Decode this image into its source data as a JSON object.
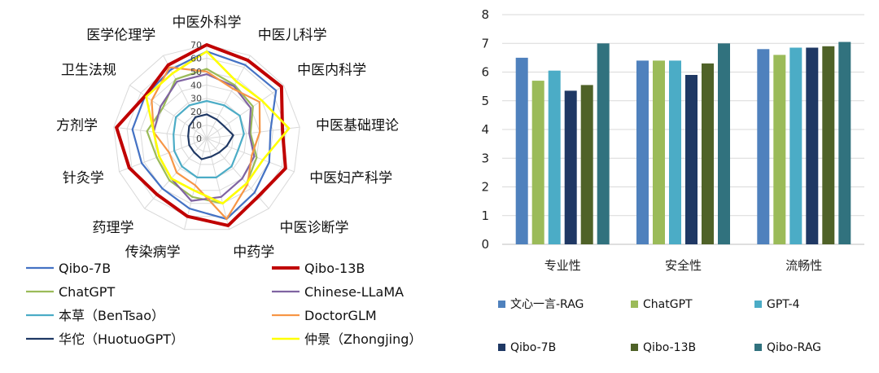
{
  "chart_data": [
    {
      "type": "radar",
      "title": "",
      "axes": [
        "中医外科学",
        "中医儿科学",
        "中医内科学",
        "中医基础理论",
        "中医妇产科学",
        "中医诊断学",
        "中药学",
        "传染病学",
        "药理学",
        "针灸学",
        "方剂学",
        "卫生法规",
        "医学伦理学"
      ],
      "ticks": [
        0,
        10,
        20,
        30,
        40,
        50,
        60,
        70
      ],
      "rlim": [
        0,
        70
      ],
      "legend_position": "bottom",
      "series": [
        {
          "name": "Qibo-7B",
          "color": "#4472C4",
          "width": 2.2,
          "values": [
            65,
            62,
            63,
            48,
            50,
            54,
            62,
            54,
            50,
            52,
            56,
            56,
            58
          ]
        },
        {
          "name": "Qibo-13B",
          "color": "#C00000",
          "width": 4,
          "values": [
            70,
            66,
            68,
            57,
            63,
            58,
            67,
            60,
            56,
            62,
            68,
            56,
            62
          ]
        },
        {
          "name": "ChatGPT",
          "color": "#9BBB59",
          "width": 2.2,
          "values": [
            52,
            45,
            42,
            33,
            40,
            45,
            50,
            45,
            42,
            40,
            45,
            40,
            50
          ]
        },
        {
          "name": "Chinese-LLaMA",
          "color": "#8064A2",
          "width": 2.2,
          "values": [
            48,
            44,
            40,
            32,
            38,
            40,
            45,
            48,
            40,
            38,
            40,
            42,
            48
          ]
        },
        {
          "name": "本草（BenTsao）",
          "color": "#4BACC6",
          "width": 2.2,
          "values": [
            28,
            28,
            30,
            28,
            25,
            28,
            30,
            30,
            28,
            26,
            25,
            28,
            28
          ]
        },
        {
          "name": "DoctorGLM",
          "color": "#F79646",
          "width": 2.2,
          "values": [
            50,
            42,
            48,
            40,
            36,
            46,
            62,
            36,
            34,
            30,
            40,
            50,
            60
          ]
        },
        {
          "name": "华佗（HuotuoGPT）",
          "color": "#1F3864",
          "width": 2.2,
          "values": [
            18,
            16,
            16,
            20,
            16,
            14,
            14,
            16,
            14,
            14,
            14,
            16,
            18
          ]
        },
        {
          "name": "仲景（Zhongjing）",
          "color": "#FFFF00",
          "width": 2.6,
          "values": [
            65,
            48,
            50,
            62,
            45,
            45,
            50,
            40,
            40,
            38,
            40,
            55,
            55
          ]
        }
      ]
    },
    {
      "type": "bar",
      "title": "",
      "xlabel": "",
      "ylabel": "",
      "categories": [
        "专业性",
        "安全性",
        "流畅性"
      ],
      "ylim": [
        0,
        8
      ],
      "yticks": [
        0,
        1,
        2,
        3,
        4,
        5,
        6,
        7,
        8
      ],
      "grid": true,
      "legend_position": "bottom",
      "series": [
        {
          "name": "文心一言-RAG",
          "color": "#4F81BD",
          "values": [
            6.5,
            6.4,
            6.8
          ]
        },
        {
          "name": "ChatGPT",
          "color": "#9BBB59",
          "values": [
            5.7,
            6.4,
            6.6
          ]
        },
        {
          "name": "GPT-4",
          "color": "#4BACC6",
          "values": [
            6.05,
            6.4,
            6.85
          ]
        },
        {
          "name": "Qibo-7B",
          "color": "#1F3864",
          "values": [
            5.35,
            5.9,
            6.85
          ]
        },
        {
          "name": "Qibo-13B",
          "color": "#4F6228",
          "values": [
            5.55,
            6.3,
            6.9
          ]
        },
        {
          "name": "Qibo-RAG",
          "color": "#31727E",
          "values": [
            7.0,
            7.0,
            7.05
          ]
        }
      ]
    }
  ]
}
